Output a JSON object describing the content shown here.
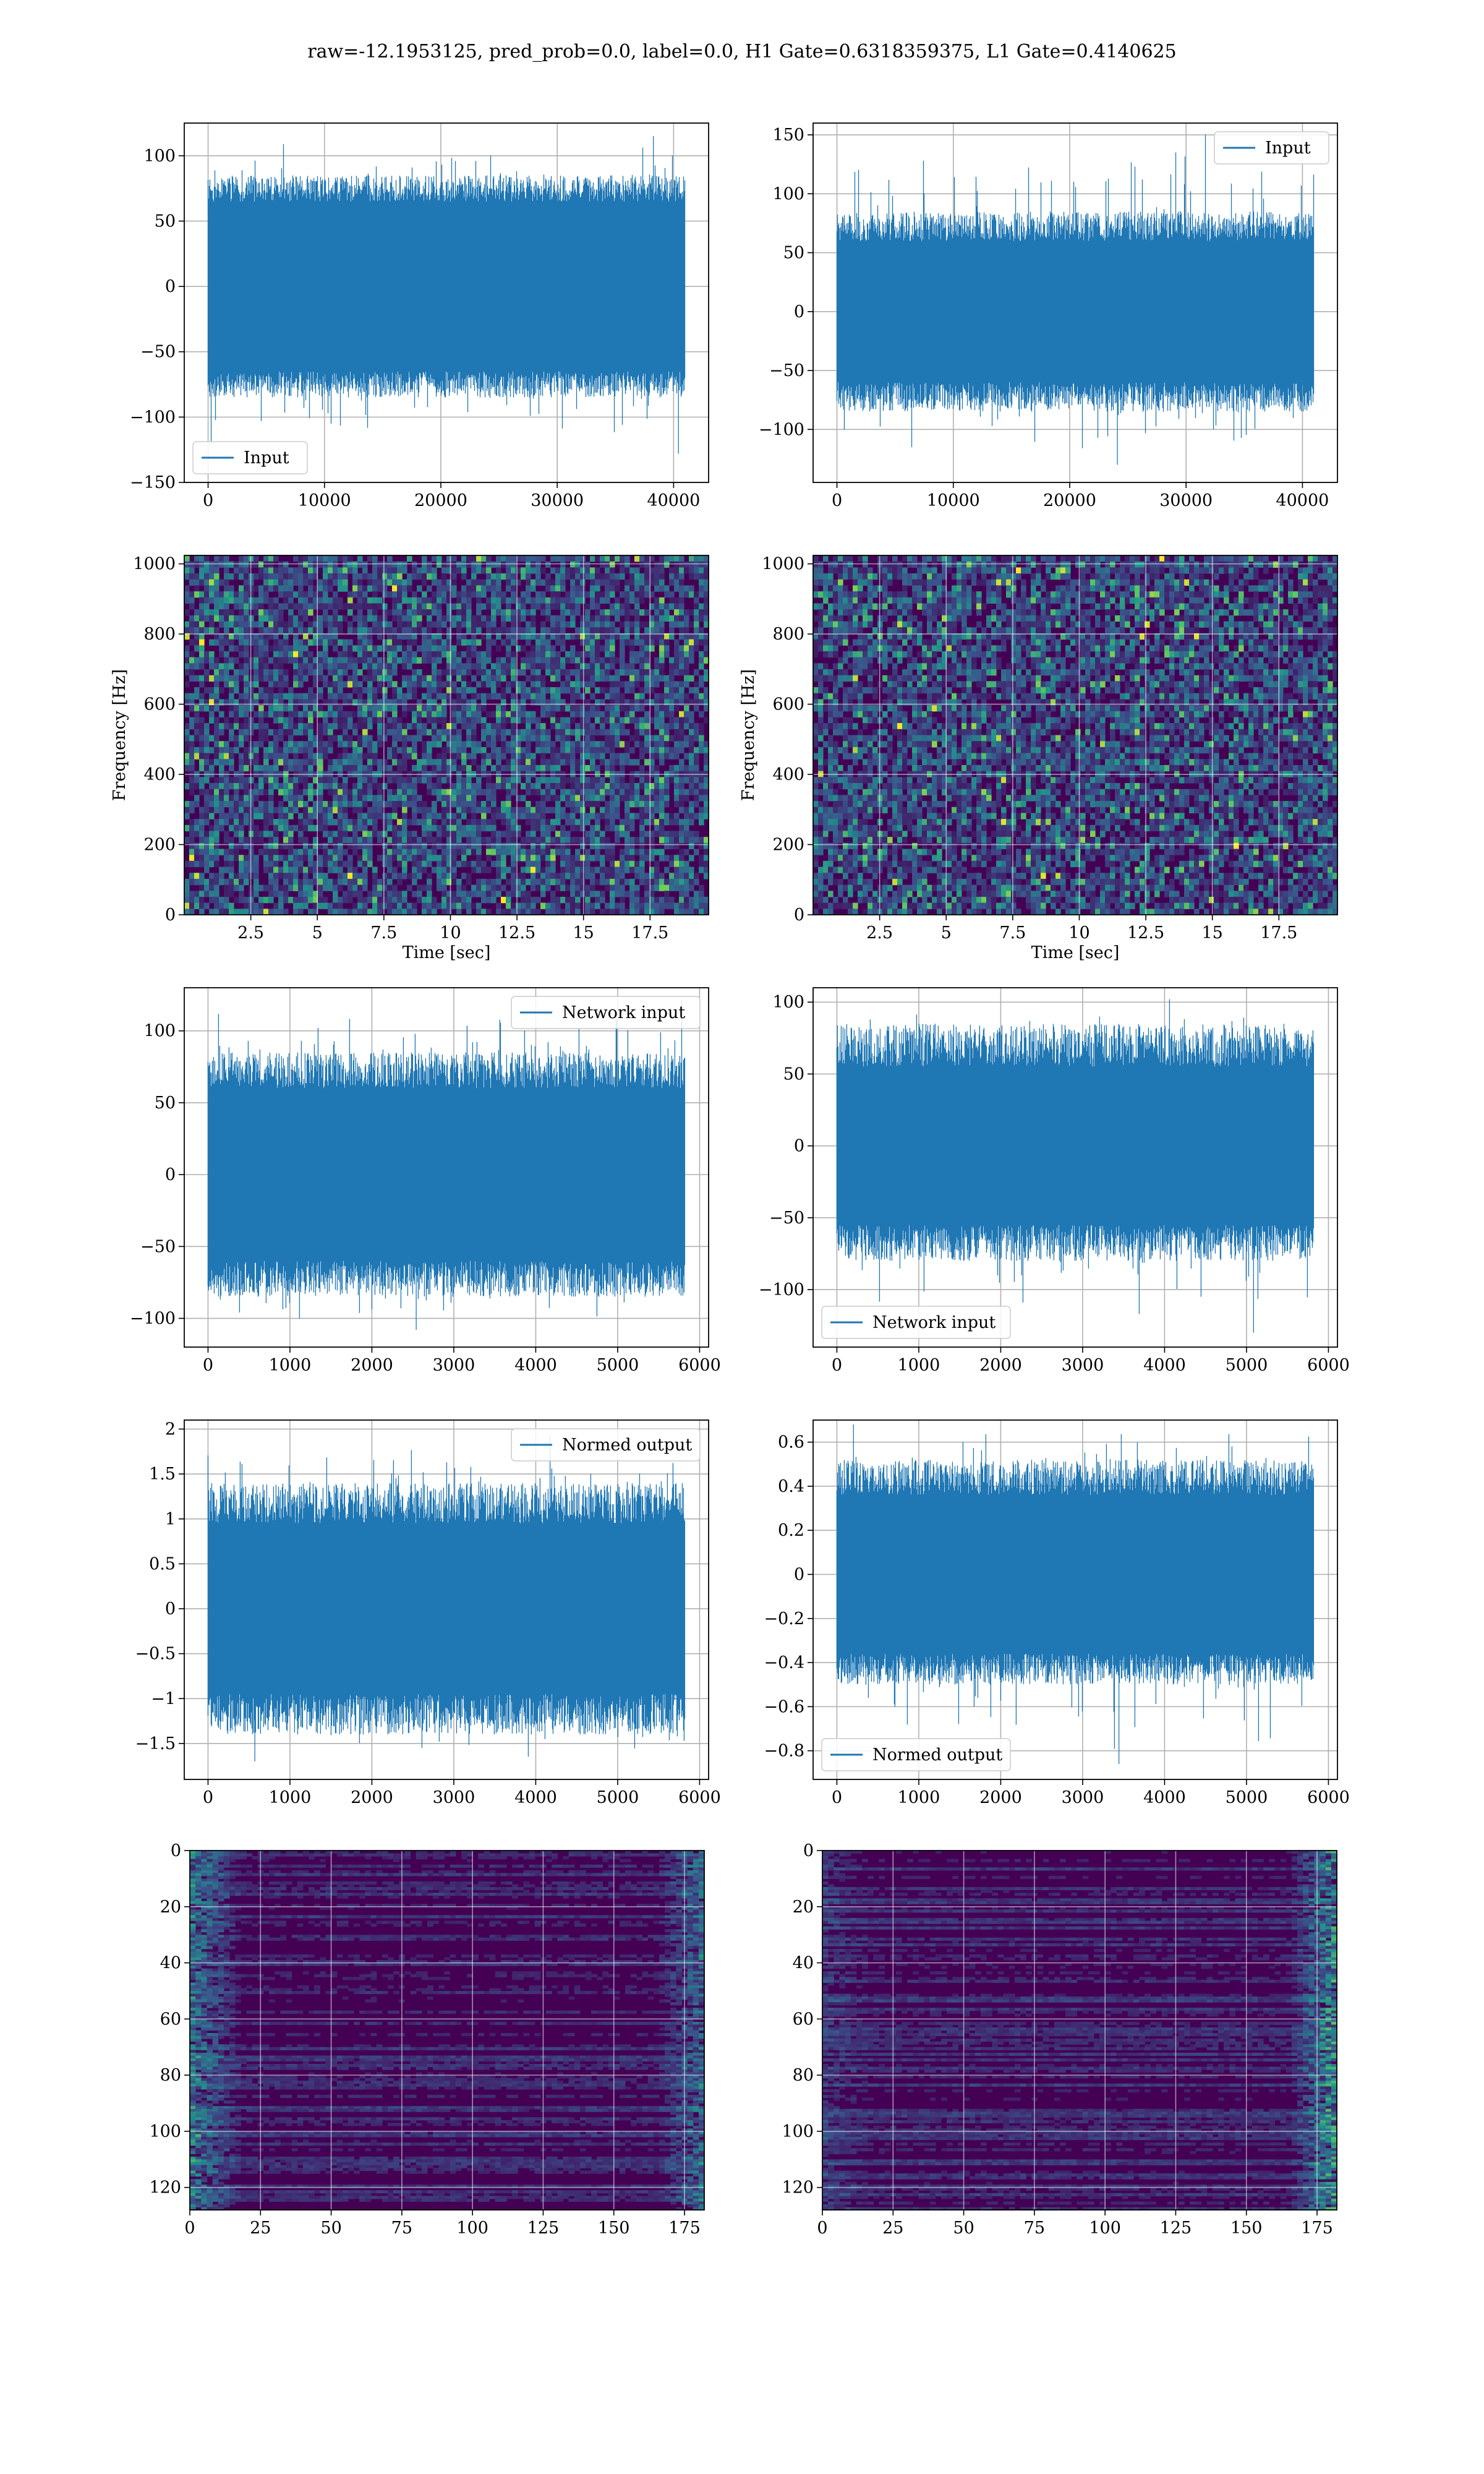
{
  "suptitle": "raw=-12.1953125, pred_prob=0.0, label=0.0, H1 Gate=0.6318359375, L1 Gate=0.4140625",
  "colors": {
    "line": "#1f77b4",
    "grid": "#b0b0b0",
    "viridis_dark": "#440154",
    "viridis_mid": "#21918c",
    "viridis_light": "#5ec962",
    "viridis_yellow": "#fde725"
  },
  "chart_data": [
    {
      "id": "h1-input",
      "type": "line",
      "title": "",
      "xlabel": "",
      "ylabel": "",
      "xlim": [
        -2048,
        43008
      ],
      "ylim": [
        -150,
        125
      ],
      "grid": true,
      "xticks": [
        0,
        10000,
        20000,
        30000,
        40000
      ],
      "yticks": [
        -150,
        -100,
        -50,
        0,
        50,
        100
      ],
      "series": [
        {
          "name": "Input",
          "n_samples": 40960,
          "envelope_min": [
            -85,
            -65
          ],
          "envelope_max": [
            65,
            85
          ],
          "peak_max": 115,
          "peak_min": -128
        }
      ],
      "legend": "lower left"
    },
    {
      "id": "l1-input",
      "type": "line",
      "title": "",
      "xlabel": "",
      "ylabel": "",
      "xlim": [
        -2048,
        43008
      ],
      "ylim": [
        -145,
        160
      ],
      "grid": true,
      "xticks": [
        0,
        10000,
        20000,
        30000,
        40000
      ],
      "yticks": [
        -100,
        -50,
        0,
        50,
        100,
        150
      ],
      "series": [
        {
          "name": "Input",
          "n_samples": 40960,
          "envelope_min": [
            -85,
            -60
          ],
          "envelope_max": [
            60,
            85
          ],
          "peak_max": 150,
          "peak_min": -130
        }
      ],
      "legend": "upper right"
    },
    {
      "id": "h1-spectrogram",
      "type": "heatmap",
      "title": "",
      "xlabel": "Time [sec]",
      "ylabel": "Frequency [Hz]",
      "xlim": [
        0,
        19.7
      ],
      "ylim": [
        0,
        1024
      ],
      "grid": true,
      "colormap": "viridis",
      "xticks": [
        2.5,
        5.0,
        7.5,
        10.0,
        12.5,
        15.0,
        17.5
      ],
      "yticks": [
        0,
        200,
        400,
        600,
        800,
        1000
      ]
    },
    {
      "id": "l1-spectrogram",
      "type": "heatmap",
      "title": "",
      "xlabel": "Time [sec]",
      "ylabel": "Frequency [Hz]",
      "xlim": [
        0,
        19.7
      ],
      "ylim": [
        0,
        1024
      ],
      "grid": true,
      "colormap": "viridis",
      "xticks": [
        2.5,
        5.0,
        7.5,
        10.0,
        12.5,
        15.0,
        17.5
      ],
      "yticks": [
        0,
        200,
        400,
        600,
        800,
        1000
      ]
    },
    {
      "id": "h1-network-input",
      "type": "line",
      "title": "",
      "xlabel": "",
      "ylabel": "",
      "xlim": [
        -290,
        6110
      ],
      "ylim": [
        -120,
        130
      ],
      "grid": true,
      "xticks": [
        0,
        1000,
        2000,
        3000,
        4000,
        5000,
        6000
      ],
      "yticks": [
        -100,
        -50,
        0,
        50,
        100
      ],
      "series": [
        {
          "name": "Network input",
          "n_samples": 5820,
          "envelope_min": [
            -85,
            -60
          ],
          "envelope_max": [
            60,
            85
          ],
          "peak_max": 122,
          "peak_min": -108
        }
      ],
      "legend": "upper right"
    },
    {
      "id": "l1-network-input",
      "type": "line",
      "title": "",
      "xlabel": "",
      "ylabel": "",
      "xlim": [
        -290,
        6110
      ],
      "ylim": [
        -140,
        110
      ],
      "grid": true,
      "xticks": [
        0,
        1000,
        2000,
        3000,
        4000,
        5000,
        6000
      ],
      "yticks": [
        -100,
        -50,
        0,
        50,
        100
      ],
      "series": [
        {
          "name": "Network input",
          "n_samples": 5820,
          "envelope_min": [
            -80,
            -55
          ],
          "envelope_max": [
            55,
            85
          ],
          "peak_max": 102,
          "peak_min": -130
        }
      ],
      "legend": "lower left"
    },
    {
      "id": "h1-normed-output",
      "type": "line",
      "title": "",
      "xlabel": "",
      "ylabel": "",
      "xlim": [
        -290,
        6110
      ],
      "ylim": [
        -1.9,
        2.1
      ],
      "grid": true,
      "xticks": [
        0,
        1000,
        2000,
        3000,
        4000,
        5000,
        6000
      ],
      "yticks": [
        -1.5,
        -1.0,
        -0.5,
        0.0,
        0.5,
        1.0,
        1.5,
        2.0
      ],
      "series": [
        {
          "name": "Normed output",
          "n_samples": 5820,
          "envelope_min": [
            -1.4,
            -0.95
          ],
          "envelope_max": [
            0.95,
            1.4
          ],
          "peak_max": 1.93,
          "peak_min": -1.7
        }
      ],
      "legend": "upper right"
    },
    {
      "id": "l1-normed-output",
      "type": "line",
      "title": "",
      "xlabel": "",
      "ylabel": "",
      "xlim": [
        -290,
        6110
      ],
      "ylim": [
        -0.93,
        0.7
      ],
      "grid": true,
      "xticks": [
        0,
        1000,
        2000,
        3000,
        4000,
        5000,
        6000
      ],
      "yticks": [
        -0.8,
        -0.6,
        -0.4,
        -0.2,
        0.0,
        0.2,
        0.4,
        0.6
      ],
      "series": [
        {
          "name": "Normed output",
          "n_samples": 5820,
          "envelope_min": [
            -0.5,
            -0.36
          ],
          "envelope_max": [
            0.36,
            0.52
          ],
          "peak_max": 0.68,
          "peak_min": -0.86
        }
      ],
      "legend": "lower left"
    },
    {
      "id": "h1-feature-map",
      "type": "heatmap",
      "title": "",
      "xlabel": "",
      "ylabel": "",
      "xlim": [
        0,
        182
      ],
      "ylim": [
        128,
        0
      ],
      "grid": true,
      "colormap": "viridis",
      "xticks": [
        0,
        25,
        50,
        75,
        100,
        125,
        150,
        175
      ],
      "yticks": [
        0,
        20,
        40,
        60,
        80,
        100,
        120
      ],
      "hot_region": "left-and-right-edges"
    },
    {
      "id": "l1-feature-map",
      "type": "heatmap",
      "title": "",
      "xlabel": "",
      "ylabel": "",
      "xlim": [
        0,
        182
      ],
      "ylim": [
        128,
        0
      ],
      "grid": true,
      "colormap": "viridis",
      "xticks": [
        0,
        25,
        50,
        75,
        100,
        125,
        150,
        175
      ],
      "yticks": [
        0,
        20,
        40,
        60,
        80,
        100,
        120
      ],
      "hot_region": "right-edge"
    }
  ]
}
